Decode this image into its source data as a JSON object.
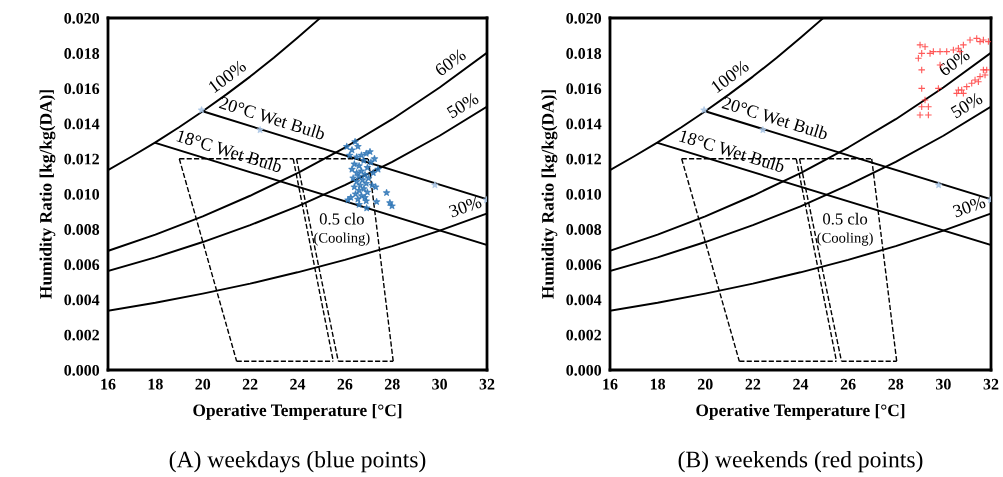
{
  "chart_data": [
    {
      "type": "line",
      "title": "(A) weekdays (blue points)",
      "xlabel": "Operative Temperature [°C]",
      "ylabel": "Humidity Ratio [kg/kg(DA)]",
      "xlim": [
        16,
        32
      ],
      "ylim": [
        0,
        0.02
      ],
      "xticks": [
        16,
        18,
        20,
        22,
        24,
        26,
        28,
        30,
        32
      ],
      "yticks": [
        {
          "value": 0,
          "label": "0.000"
        },
        {
          "value": 0.002,
          "label": "0.002"
        },
        {
          "value": 0.004,
          "label": "0.004"
        },
        {
          "value": 0.006,
          "label": "0.006"
        },
        {
          "value": 0.008,
          "label": "0.008"
        },
        {
          "value": 0.01,
          "label": "0.010"
        },
        {
          "value": 0.012,
          "label": "0.012"
        },
        {
          "value": 0.014,
          "label": "0.014"
        },
        {
          "value": 0.016,
          "label": "0.016"
        },
        {
          "value": 0.018,
          "label": "0.018"
        },
        {
          "value": 0.02,
          "label": "0.020"
        }
      ],
      "grid": false,
      "legend": false,
      "annotations": [
        "0.5 clo",
        "(Cooling)"
      ],
      "series": [
        {
          "name": "100%",
          "type": "line",
          "color": "#000000",
          "line_style": "solid",
          "x": [
            16,
            17,
            18,
            19,
            20,
            21,
            22,
            23,
            24,
            24.96
          ],
          "values": [
            0.01136,
            0.01213,
            0.01293,
            0.01379,
            0.0147,
            0.01566,
            0.01667,
            0.01774,
            0.01888,
            0.02
          ]
        },
        {
          "name": "60%",
          "type": "line",
          "color": "#000000",
          "line_style": "solid",
          "x": [
            16,
            18,
            20,
            22,
            24,
            26,
            28,
            30,
            32
          ],
          "values": [
            0.00677,
            0.00769,
            0.00873,
            0.0099,
            0.01119,
            0.01264,
            0.01425,
            0.01605,
            0.01803
          ]
        },
        {
          "name": "50%",
          "type": "line",
          "color": "#000000",
          "line_style": "solid",
          "x": [
            16,
            18,
            20,
            22,
            24,
            26,
            28,
            30,
            32
          ],
          "values": [
            0.00563,
            0.0064,
            0.00727,
            0.00823,
            0.0093,
            0.0105,
            0.01183,
            0.01331,
            0.01496
          ]
        },
        {
          "name": "30%",
          "type": "line",
          "color": "#000000",
          "line_style": "solid",
          "x": [
            16,
            18,
            20,
            22,
            24,
            26,
            28,
            30,
            32
          ],
          "values": [
            0.00337,
            0.00382,
            0.00434,
            0.00491,
            0.00555,
            0.00626,
            0.00704,
            0.00792,
            0.00889
          ]
        },
        {
          "name": "20°C Wet Bulb",
          "type": "line",
          "color": "#000000",
          "line_style": "solid",
          "x": [
            20,
            32
          ],
          "values": [
            0.0147,
            0.0097
          ]
        },
        {
          "name": "18°C Wet Bulb",
          "type": "line",
          "color": "#000000",
          "line_style": "solid",
          "x": [
            18,
            32
          ],
          "values": [
            0.0129,
            0.0071
          ]
        },
        {
          "type": "line",
          "color": "#000000",
          "line_style": "dashed",
          "x": [
            19.01,
            23.82
          ],
          "values": [
            0.012,
            0.012
          ]
        },
        {
          "type": "line",
          "color": "#000000",
          "line_style": "dashed",
          "x": [
            23.82,
            25.51
          ],
          "values": [
            0.012,
            0.0005
          ]
        },
        {
          "type": "line",
          "color": "#000000",
          "line_style": "dashed",
          "x": [
            21.43,
            25.51
          ],
          "values": [
            0.0005,
            0.0005
          ]
        },
        {
          "type": "line",
          "color": "#000000",
          "line_style": "dashed",
          "x": [
            19.01,
            21.43
          ],
          "values": [
            0.012,
            0.0005
          ]
        },
        {
          "type": "line",
          "color": "#000000",
          "line_style": "dashed",
          "x": [
            23.96,
            26.99
          ],
          "values": [
            0.012,
            0.012
          ]
        },
        {
          "type": "line",
          "color": "#000000",
          "line_style": "dashed",
          "x": [
            26.99,
            28.04
          ],
          "values": [
            0.012,
            0.0005
          ]
        },
        {
          "type": "line",
          "color": "#000000",
          "line_style": "dashed",
          "x": [
            25.72,
            28.04
          ],
          "values": [
            0.0005,
            0.0005
          ]
        },
        {
          "type": "line",
          "color": "#000000",
          "line_style": "dashed",
          "x": [
            23.96,
            25.72
          ],
          "values": [
            0.012,
            0.0005
          ]
        },
        {
          "type": "scatter",
          "color": "#a9c4e4",
          "marker": "star",
          "x": [
            19.95,
            22.42,
            29.8,
            31.98
          ],
          "values": [
            0.01477,
            0.01364,
            0.01051,
            0.00966
          ]
        },
        {
          "type": "scatter",
          "color": "#2e75b6",
          "marker": "star",
          "x": [
            26.43,
            26.08,
            26.3,
            26.55,
            26.7,
            27.06,
            26.9,
            26.5,
            26.8,
            27.1,
            26.4,
            26.6,
            26.95,
            26.3,
            26.7,
            27.2,
            26.5,
            26.85,
            26.6,
            26.35,
            27.0,
            26.75,
            26.5,
            26.9,
            26.65,
            27.15,
            26.4,
            26.8,
            26.6,
            26.95,
            26.45,
            26.7,
            26.25,
            26.85,
            26.55,
            26.13,
            26.9,
            27.34,
            26.6,
            26.92,
            27.76,
            27.99,
            27.9,
            27.4,
            27.3,
            26.2,
            27.25
          ],
          "values": [
            0.01297,
            0.01269,
            0.0125,
            0.0127,
            0.0122,
            0.0124,
            0.0123,
            0.0121,
            0.0119,
            0.0118,
            0.0117,
            0.0116,
            0.0115,
            0.0114,
            0.0113,
            0.0112,
            0.0112,
            0.0111,
            0.011,
            0.0109,
            0.0109,
            0.0108,
            0.0107,
            0.0106,
            0.0105,
            0.0105,
            0.0104,
            0.0103,
            0.0102,
            0.0101,
            0.01,
            0.0099,
            0.0098,
            0.0098,
            0.0097,
            0.00966,
            0.0096,
            0.00956,
            0.0094,
            0.0092,
            0.01007,
            0.00932,
            0.0095,
            0.0114,
            0.0104,
            0.0122,
            0.012
          ]
        }
      ]
    },
    {
      "type": "line",
      "title": "(B) weekends (red points)",
      "xlabel": "Operative Temperature [°C]",
      "ylabel": "Humidity Ratio [kg/kg(DA)]",
      "xlim": [
        16,
        32
      ],
      "ylim": [
        0,
        0.02
      ],
      "xticks": [
        16,
        18,
        20,
        22,
        24,
        26,
        28,
        30,
        32
      ],
      "yticks": [
        {
          "value": 0,
          "label": "0.000"
        },
        {
          "value": 0.002,
          "label": "0.002"
        },
        {
          "value": 0.004,
          "label": "0.004"
        },
        {
          "value": 0.006,
          "label": "0.006"
        },
        {
          "value": 0.008,
          "label": "0.008"
        },
        {
          "value": 0.01,
          "label": "0.010"
        },
        {
          "value": 0.012,
          "label": "0.012"
        },
        {
          "value": 0.014,
          "label": "0.014"
        },
        {
          "value": 0.016,
          "label": "0.016"
        },
        {
          "value": 0.018,
          "label": "0.018"
        },
        {
          "value": 0.02,
          "label": "0.020"
        }
      ],
      "grid": false,
      "legend": false,
      "annotations": [
        "0.5 clo",
        "(Cooling)"
      ],
      "series": [
        {
          "name": "100%",
          "type": "line",
          "color": "#000000",
          "line_style": "solid",
          "x": [
            16,
            17,
            18,
            19,
            20,
            21,
            22,
            23,
            24,
            24.96
          ],
          "values": [
            0.01136,
            0.01213,
            0.01293,
            0.01379,
            0.0147,
            0.01566,
            0.01667,
            0.01774,
            0.01888,
            0.02
          ]
        },
        {
          "name": "60%",
          "type": "line",
          "color": "#000000",
          "line_style": "solid",
          "x": [
            16,
            18,
            20,
            22,
            24,
            26,
            28,
            30,
            32
          ],
          "values": [
            0.00677,
            0.00769,
            0.00873,
            0.0099,
            0.01119,
            0.01264,
            0.01425,
            0.01605,
            0.01803
          ]
        },
        {
          "name": "50%",
          "type": "line",
          "color": "#000000",
          "line_style": "solid",
          "x": [
            16,
            18,
            20,
            22,
            24,
            26,
            28,
            30,
            32
          ],
          "values": [
            0.00563,
            0.0064,
            0.00727,
            0.00823,
            0.0093,
            0.0105,
            0.01183,
            0.01331,
            0.01496
          ]
        },
        {
          "name": "30%",
          "type": "line",
          "color": "#000000",
          "line_style": "solid",
          "x": [
            16,
            18,
            20,
            22,
            24,
            26,
            28,
            30,
            32
          ],
          "values": [
            0.00337,
            0.00382,
            0.00434,
            0.00491,
            0.00555,
            0.00626,
            0.00704,
            0.00792,
            0.00889
          ]
        },
        {
          "name": "20°C Wet Bulb",
          "type": "line",
          "color": "#000000",
          "line_style": "solid",
          "x": [
            20,
            32
          ],
          "values": [
            0.0147,
            0.0097
          ]
        },
        {
          "name": "18°C Wet Bulb",
          "type": "line",
          "color": "#000000",
          "line_style": "solid",
          "x": [
            18,
            32
          ],
          "values": [
            0.0129,
            0.0071
          ]
        },
        {
          "type": "line",
          "color": "#000000",
          "line_style": "dashed",
          "x": [
            19.01,
            23.82
          ],
          "values": [
            0.012,
            0.012
          ]
        },
        {
          "type": "line",
          "color": "#000000",
          "line_style": "dashed",
          "x": [
            23.82,
            25.51
          ],
          "values": [
            0.012,
            0.0005
          ]
        },
        {
          "type": "line",
          "color": "#000000",
          "line_style": "dashed",
          "x": [
            21.43,
            25.51
          ],
          "values": [
            0.0005,
            0.0005
          ]
        },
        {
          "type": "line",
          "color": "#000000",
          "line_style": "dashed",
          "x": [
            19.01,
            21.43
          ],
          "values": [
            0.012,
            0.0005
          ]
        },
        {
          "type": "line",
          "color": "#000000",
          "line_style": "dashed",
          "x": [
            23.96,
            26.99
          ],
          "values": [
            0.012,
            0.012
          ]
        },
        {
          "type": "line",
          "color": "#000000",
          "line_style": "dashed",
          "x": [
            26.99,
            28.04
          ],
          "values": [
            0.012,
            0.0005
          ]
        },
        {
          "type": "line",
          "color": "#000000",
          "line_style": "dashed",
          "x": [
            25.72,
            28.04
          ],
          "values": [
            0.0005,
            0.0005
          ]
        },
        {
          "type": "line",
          "color": "#000000",
          "line_style": "dashed",
          "x": [
            23.96,
            25.72
          ],
          "values": [
            0.012,
            0.0005
          ]
        },
        {
          "type": "scatter",
          "color": "#a9c4e4",
          "marker": "star",
          "x": [
            19.95,
            22.42,
            29.8,
            31.98
          ],
          "values": [
            0.01477,
            0.01364,
            0.01051,
            0.00966
          ]
        },
        {
          "type": "scatter",
          "color": "#ff3030",
          "marker": "cross",
          "x": [
            29.02,
            29.23,
            29.09,
            29.44,
            29.58,
            29.86,
            30.14,
            30.42,
            30.63,
            30.7,
            30.84,
            31.12,
            31.4,
            31.68,
            31.89,
            31.54,
            28.95,
            29.09,
            29.09,
            29.23,
            29.09,
            29.02,
            29.37,
            29.37,
            29.79,
            30.56,
            30.77,
            30.98,
            31.19,
            31.33,
            31.54,
            31.68,
            31.82,
            31.75,
            31.47,
            30.84,
            30.63,
            29.86
          ],
          "values": [
            0.01847,
            0.01837,
            0.01799,
            0.01799,
            0.01809,
            0.01809,
            0.01809,
            0.01818,
            0.01828,
            0.01809,
            0.01847,
            0.01875,
            0.01884,
            0.01875,
            0.01866,
            0.01866,
            0.01771,
            0.01705,
            0.016,
            0.01534,
            0.01496,
            0.01449,
            0.01449,
            0.01496,
            0.016,
            0.01572,
            0.01591,
            0.0161,
            0.01629,
            0.01648,
            0.01667,
            0.01705,
            0.01705,
            0.01676,
            0.01638,
            0.01572,
            0.01591,
            0.01733
          ]
        }
      ]
    }
  ]
}
